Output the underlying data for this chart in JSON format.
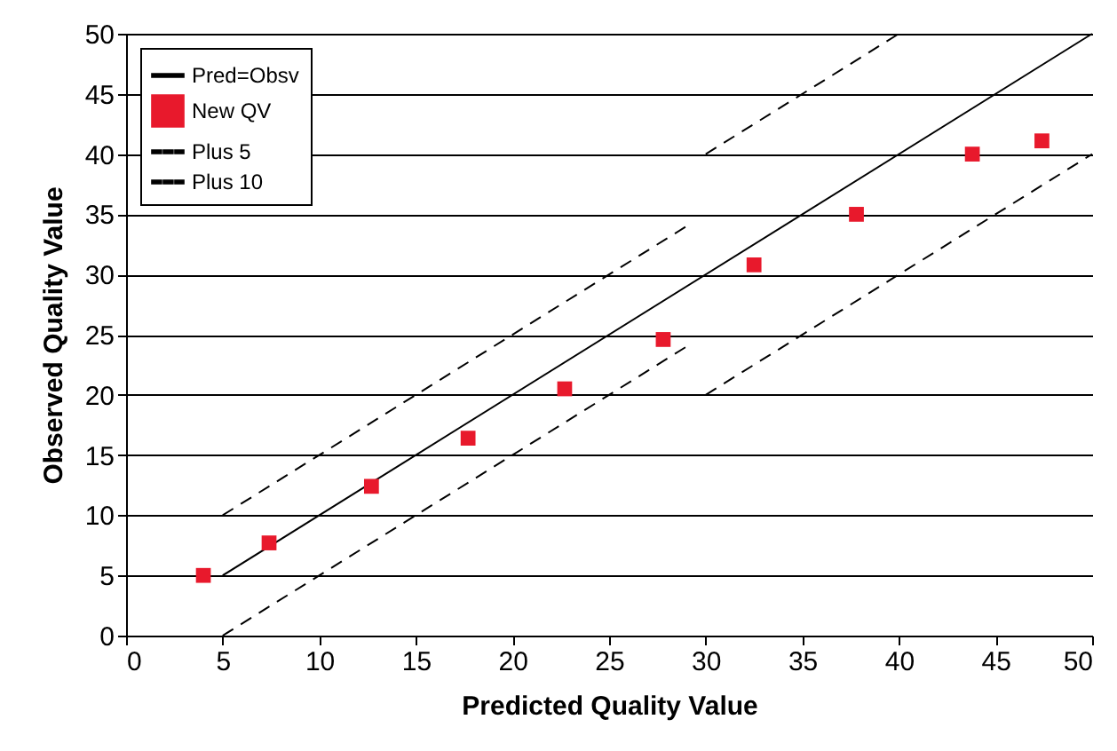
{
  "chart_data": {
    "type": "scatter",
    "xlabel": "Predicted Quality Value",
    "ylabel": "Observed Quality Value",
    "xlim": [
      0,
      50
    ],
    "ylim": [
      0,
      50
    ],
    "xticks": [
      0,
      5,
      10,
      15,
      20,
      25,
      30,
      35,
      40,
      45,
      50
    ],
    "yticks": [
      0,
      5,
      10,
      15,
      20,
      25,
      30,
      35,
      40,
      45,
      50
    ],
    "grid": "y",
    "legend": "top left",
    "series": [
      {
        "name": "Pred=Obsv",
        "type": "line",
        "color": "#000000",
        "line_style": "solid",
        "marker": "none",
        "x": [
          5,
          50
        ],
        "values": [
          5,
          50
        ]
      },
      {
        "name": "New QV",
        "type": "scatter",
        "color": "#e8192c",
        "marker": "square",
        "x": [
          4.0,
          7.4,
          12.7,
          17.7,
          22.7,
          27.8,
          32.5,
          37.8,
          43.8,
          47.4
        ],
        "values": [
          5.0,
          7.7,
          12.4,
          16.4,
          20.5,
          24.6,
          30.8,
          35.0,
          40.0,
          41.1
        ]
      },
      {
        "name": "Plus 5",
        "type": "line",
        "color": "#000000",
        "line_style": "dashed",
        "marker": "none",
        "x": [
          5,
          29
        ],
        "values": [
          10,
          34
        ]
      },
      {
        "type": "line",
        "color": "#000000",
        "line_style": "dashed",
        "marker": "none",
        "x": [
          5,
          29
        ],
        "values": [
          0,
          24
        ]
      },
      {
        "name": "Plus 10",
        "type": "line",
        "color": "#000000",
        "line_style": "dashed",
        "marker": "none",
        "x": [
          30,
          40
        ],
        "values": [
          40,
          50
        ]
      },
      {
        "type": "line",
        "color": "#000000",
        "line_style": "dashed",
        "marker": "none",
        "x": [
          30,
          50
        ],
        "values": [
          20,
          40
        ]
      }
    ]
  }
}
